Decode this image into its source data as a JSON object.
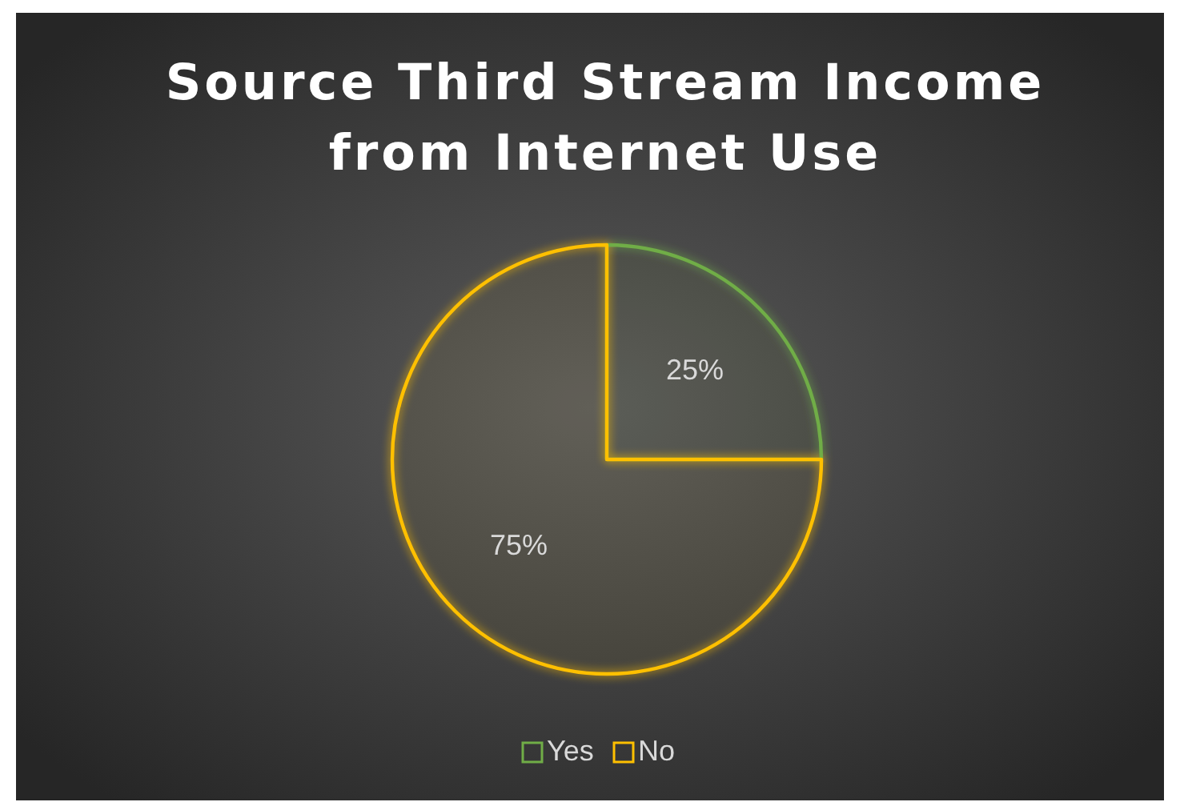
{
  "chart_data": {
    "type": "pie",
    "title": "Source Third Stream Income from Internet Use",
    "categories": [
      "Yes",
      "No"
    ],
    "values": [
      25,
      75
    ],
    "colors": [
      "#70ad47",
      "#ffc000"
    ],
    "value_labels": [
      "25%",
      "75%"
    ],
    "legend": "bottom"
  }
}
